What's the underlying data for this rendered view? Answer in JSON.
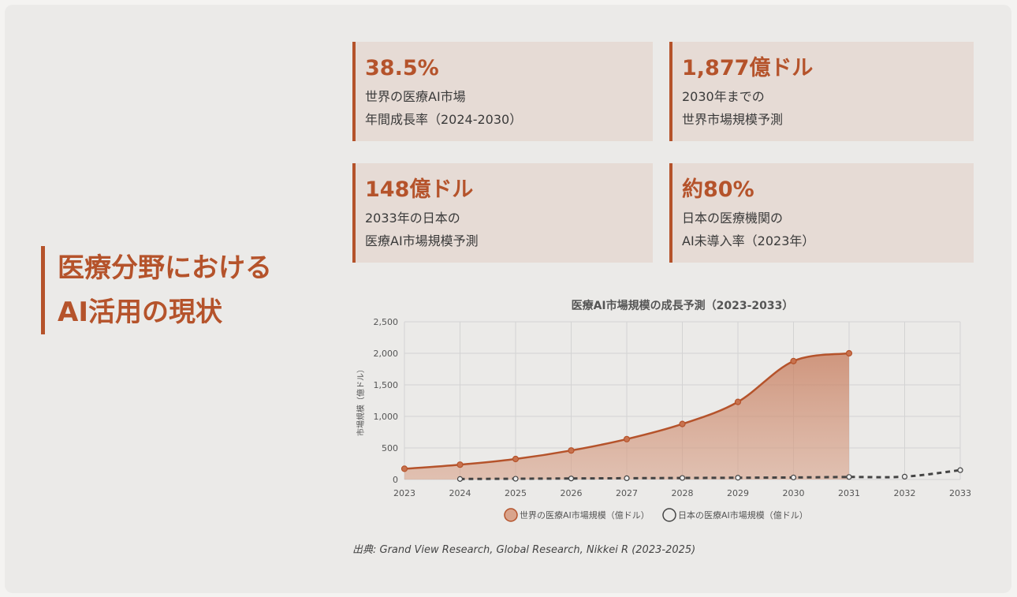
{
  "title": {
    "line1": "医療分野における",
    "line2": "AI活用の現状"
  },
  "stats": [
    {
      "value": "38.5%",
      "line1": "世界の医療AI市場",
      "line2": "年間成長率（2024-2030）"
    },
    {
      "value": "1,877億ドル",
      "line1": "2030年までの",
      "line2": "世界市場規模予測"
    },
    {
      "value": "148億ドル",
      "line1": "2033年の日本の",
      "line2": "医療AI市場規模予測"
    },
    {
      "value": "約80%",
      "line1": "日本の医療機関の",
      "line2": "AI未導入率（2023年）"
    }
  ],
  "chart_data": {
    "type": "line",
    "title": "医療AI市場規模の成長予測（2023-2033）",
    "ylabel": "市場規模（億ドル）",
    "x": [
      "2023",
      "2024",
      "2025",
      "2026",
      "2027",
      "2028",
      "2029",
      "2030",
      "2031",
      "2032",
      "2033"
    ],
    "ylim": [
      0,
      2500
    ],
    "yticks": [
      0,
      500,
      1000,
      1500,
      2000,
      2500
    ],
    "ytick_labels": [
      "0",
      "500",
      "1,000",
      "1,500",
      "2,000",
      "2,500"
    ],
    "grid": true,
    "legend_position": "bottom",
    "series": [
      {
        "name": "世界の医療AI市場規模（億ドル）",
        "color": "#b5532b",
        "fill": true,
        "dashed": false,
        "values": [
          170,
          235,
          325,
          460,
          640,
          880,
          1230,
          1877,
          2000,
          null,
          null
        ]
      },
      {
        "name": "日本の医療AI市場規模（億ドル）",
        "color": "#444444",
        "fill": false,
        "dashed": true,
        "values": [
          null,
          8,
          12,
          16,
          20,
          24,
          28,
          32,
          40,
          45,
          148
        ]
      }
    ]
  },
  "source": "出典: Grand View Research, Global Research, Nikkei R (2023-2025)"
}
